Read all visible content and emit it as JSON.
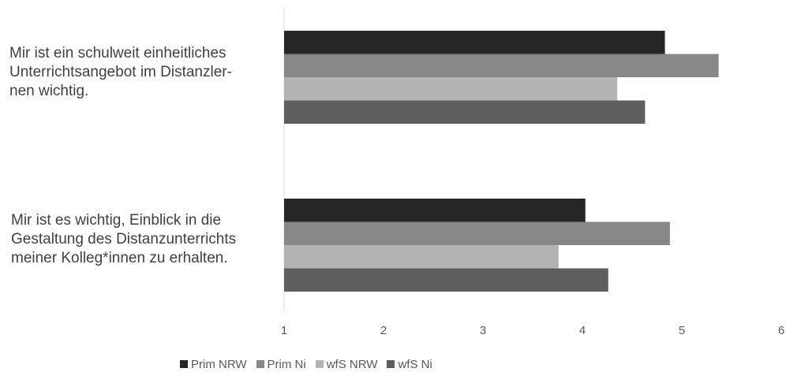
{
  "chart_data": {
    "type": "bar",
    "orientation": "horizontal",
    "title": "",
    "xlabel": "",
    "ylabel": "",
    "xlim": [
      1,
      6
    ],
    "x_ticks": [
      "1",
      "2",
      "3",
      "4",
      "5",
      "6"
    ],
    "categories": [
      {
        "lines": [
          "Mir ist ein schulweit einheitliches",
          "Unterrichtsangebot im Distanzler-",
          "nen wichtig."
        ]
      },
      {
        "lines": [
          "Mir ist es wichtig, Einblick in die",
          "Gestaltung des Distanzunterrichts",
          "meiner Kolleg*innen zu erhalten."
        ]
      }
    ],
    "series": [
      {
        "name": "Prim NRW",
        "color": "#262626",
        "values": [
          4.83,
          4.03
        ]
      },
      {
        "name": "Prim Ni",
        "color": "#878787",
        "values": [
          5.37,
          4.88
        ]
      },
      {
        "name": "wfS NRW",
        "color": "#b3b3b3",
        "values": [
          4.35,
          3.76
        ]
      },
      {
        "name": "wfS Ni",
        "color": "#5e5e5e",
        "values": [
          4.63,
          4.26
        ]
      }
    ],
    "grid": false,
    "legend_position": "bottom"
  }
}
